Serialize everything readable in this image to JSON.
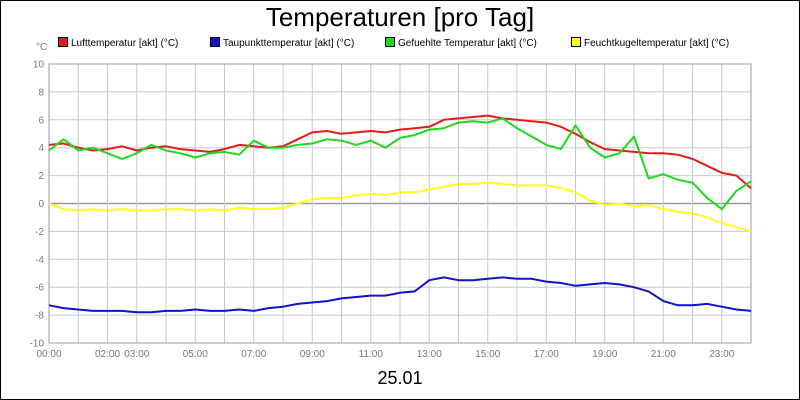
{
  "chart_data": {
    "type": "line",
    "title": "Temperaturen [pro Tag]",
    "ylabel": "°C",
    "xlabel": "25.01",
    "ylim": [
      -10,
      10
    ],
    "xlim": [
      0,
      24
    ],
    "y_ticks": [
      "10",
      "8",
      "6",
      "4",
      "2",
      "0",
      "-2",
      "-4",
      "-6",
      "-8",
      "-10"
    ],
    "x_ticks": [
      {
        "x": 0,
        "label": "00:00"
      },
      {
        "x": 2,
        "label": "02:00"
      },
      {
        "x": 3,
        "label": "03:00"
      },
      {
        "x": 5,
        "label": "05:00"
      },
      {
        "x": 7,
        "label": "07:00"
      },
      {
        "x": 9,
        "label": "09:00"
      },
      {
        "x": 11,
        "label": "11:00"
      },
      {
        "x": 13,
        "label": "13:00"
      },
      {
        "x": 15,
        "label": "15:00"
      },
      {
        "x": 17,
        "label": "17:00"
      },
      {
        "x": 19,
        "label": "19:00"
      },
      {
        "x": 21,
        "label": "21:00"
      },
      {
        "x": 23,
        "label": "23:00"
      }
    ],
    "grid": true,
    "legend_position": "top",
    "series": [
      {
        "name": "Lufttemperatur [akt] (°C)",
        "color": "#e31b1b",
        "x": [
          0,
          0.5,
          1,
          1.5,
          2,
          2.5,
          3,
          3.5,
          4,
          4.5,
          5,
          5.5,
          6,
          6.5,
          7,
          7.5,
          8,
          8.5,
          9,
          9.5,
          10,
          10.5,
          11,
          11.5,
          12,
          12.5,
          13,
          13.5,
          14,
          14.5,
          15,
          15.5,
          16,
          16.5,
          17,
          17.5,
          18,
          18.5,
          19,
          19.5,
          20,
          20.5,
          21,
          21.5,
          22,
          22.5,
          23,
          23.5,
          24
        ],
        "values": [
          4.2,
          4.3,
          4.0,
          3.8,
          3.9,
          4.1,
          3.8,
          4.0,
          4.1,
          3.9,
          3.8,
          3.7,
          3.9,
          4.2,
          4.1,
          4.0,
          4.1,
          4.6,
          5.1,
          5.2,
          5.0,
          5.1,
          5.2,
          5.1,
          5.3,
          5.4,
          5.5,
          6.0,
          6.1,
          6.2,
          6.3,
          6.1,
          6.0,
          5.9,
          5.8,
          5.5,
          5.0,
          4.4,
          3.9,
          3.8,
          3.7,
          3.6,
          3.6,
          3.5,
          3.2,
          2.7,
          2.2,
          2.0,
          1.1
        ]
      },
      {
        "name": "Taupunkttemperatur [akt] (°C)",
        "color": "#1212c8",
        "x": [
          0,
          0.5,
          1,
          1.5,
          2,
          2.5,
          3,
          3.5,
          4,
          4.5,
          5,
          5.5,
          6,
          6.5,
          7,
          7.5,
          8,
          8.5,
          9,
          9.5,
          10,
          10.5,
          11,
          11.5,
          12,
          12.5,
          13,
          13.5,
          14,
          14.5,
          15,
          15.5,
          16,
          16.5,
          17,
          17.5,
          18,
          18.5,
          19,
          19.5,
          20,
          20.5,
          21,
          21.5,
          22,
          22.5,
          23,
          23.5,
          24
        ],
        "values": [
          -7.3,
          -7.5,
          -7.6,
          -7.7,
          -7.7,
          -7.7,
          -7.8,
          -7.8,
          -7.7,
          -7.7,
          -7.6,
          -7.7,
          -7.7,
          -7.6,
          -7.7,
          -7.5,
          -7.4,
          -7.2,
          -7.1,
          -7.0,
          -6.8,
          -6.7,
          -6.6,
          -6.6,
          -6.4,
          -6.3,
          -5.5,
          -5.3,
          -5.5,
          -5.5,
          -5.4,
          -5.3,
          -5.4,
          -5.4,
          -5.6,
          -5.7,
          -5.9,
          -5.8,
          -5.7,
          -5.8,
          -6.0,
          -6.3,
          -7.0,
          -7.3,
          -7.3,
          -7.2,
          -7.4,
          -7.6,
          -7.7
        ]
      },
      {
        "name": "Gefuehlte Temperatur [akt] (°C)",
        "color": "#1ed81e",
        "x": [
          0,
          0.5,
          1,
          1.5,
          2,
          2.5,
          3,
          3.5,
          4,
          4.5,
          5,
          5.5,
          6,
          6.5,
          7,
          7.5,
          8,
          8.5,
          9,
          9.5,
          10,
          10.5,
          11,
          11.5,
          12,
          12.5,
          13,
          13.5,
          14,
          14.5,
          15,
          15.5,
          16,
          16.5,
          17,
          17.5,
          18,
          18.5,
          19,
          19.5,
          20,
          20.5,
          21,
          21.5,
          22,
          22.5,
          23,
          23.5,
          24
        ],
        "values": [
          3.8,
          4.6,
          3.8,
          4.0,
          3.6,
          3.2,
          3.6,
          4.2,
          3.8,
          3.6,
          3.3,
          3.6,
          3.7,
          3.5,
          4.5,
          4.0,
          4.0,
          4.2,
          4.3,
          4.6,
          4.5,
          4.2,
          4.5,
          4.0,
          4.7,
          4.9,
          5.3,
          5.4,
          5.8,
          5.9,
          5.8,
          6.1,
          5.4,
          4.8,
          4.2,
          3.9,
          5.6,
          4.0,
          3.3,
          3.6,
          4.8,
          1.8,
          2.1,
          1.7,
          1.5,
          0.4,
          -0.4,
          0.9,
          1.6
        ]
      },
      {
        "name": "Feuchtkugeltemperatur [akt] (°C)",
        "color": "#ffff1a",
        "x": [
          0,
          0.5,
          1,
          1.5,
          2,
          2.5,
          3,
          3.5,
          4,
          4.5,
          5,
          5.5,
          6,
          6.5,
          7,
          7.5,
          8,
          8.5,
          9,
          9.5,
          10,
          10.5,
          11,
          11.5,
          12,
          12.5,
          13,
          13.5,
          14,
          14.5,
          15,
          15.5,
          16,
          16.5,
          17,
          17.5,
          18,
          18.5,
          19,
          19.5,
          20,
          20.5,
          21,
          21.5,
          22,
          22.5,
          23,
          23.5,
          24
        ],
        "values": [
          0.0,
          -0.4,
          -0.5,
          -0.4,
          -0.5,
          -0.4,
          -0.5,
          -0.5,
          -0.4,
          -0.4,
          -0.5,
          -0.4,
          -0.5,
          -0.3,
          -0.4,
          -0.4,
          -0.3,
          0.0,
          0.3,
          0.4,
          0.4,
          0.6,
          0.7,
          0.6,
          0.8,
          0.8,
          1.0,
          1.2,
          1.4,
          1.4,
          1.5,
          1.4,
          1.3,
          1.3,
          1.3,
          1.1,
          0.8,
          0.2,
          -0.1,
          0.0,
          -0.2,
          -0.1,
          -0.4,
          -0.6,
          -0.7,
          -1.0,
          -1.4,
          -1.7,
          -2.0
        ]
      }
    ]
  },
  "ui": {
    "title": "Temperaturen [pro Tag]",
    "y_unit": "°C",
    "date": "25.01"
  }
}
